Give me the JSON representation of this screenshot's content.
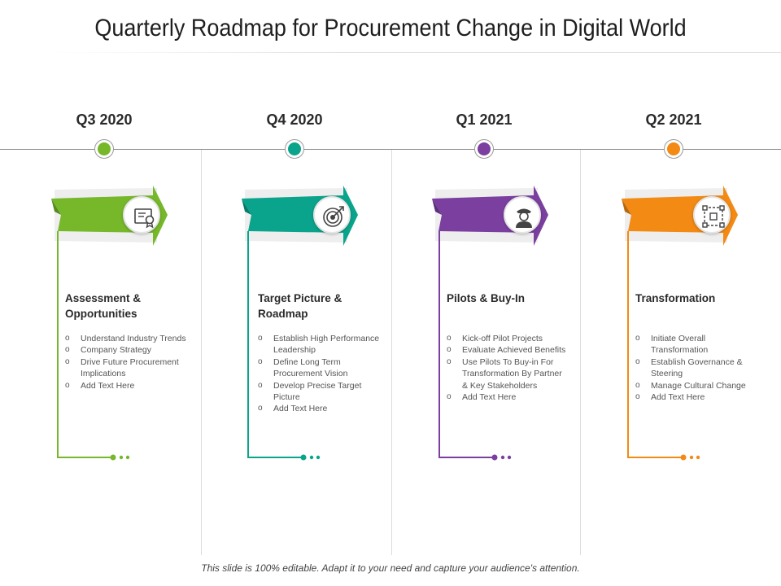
{
  "title": "Quarterly Roadmap for Procurement Change in Digital World",
  "footer": "This slide is 100% editable. Adapt it to your need and capture your audience's attention.",
  "stages": [
    {
      "quarter": "Q3 2020",
      "color": "#76b82a",
      "icon": "certificate-icon",
      "heading": "Assessment & Opportunities",
      "bullets": [
        "Understand Industry Trends",
        "Company Strategy",
        "Drive Future Procurement Implications",
        "Add Text Here"
      ]
    },
    {
      "quarter": "Q4 2020",
      "color": "#0aa48c",
      "icon": "target-icon",
      "heading": "Target Picture & Roadmap",
      "bullets": [
        "Establish High Performance Leadership",
        "Define Long Term Procurement Vision",
        "Develop Precise Target Picture",
        "Add Text Here"
      ]
    },
    {
      "quarter": "Q1 2021",
      "color": "#7b3fa0",
      "icon": "pilot-icon",
      "heading": "Pilots & Buy-In",
      "bullets": [
        "Kick-off Pilot Projects",
        "Evaluate Achieved Benefits",
        "Use Pilots To Buy-in For Transformation By Partner & Key Stakeholders",
        "Add Text Here"
      ]
    },
    {
      "quarter": "Q2 2021",
      "color": "#f28a14",
      "icon": "transformation-icon",
      "heading": "Transformation",
      "bullets": [
        "Initiate Overall Transformation",
        "Establish Governance & Steering",
        "Manage Cultural Change",
        "Add Text Here"
      ]
    }
  ]
}
